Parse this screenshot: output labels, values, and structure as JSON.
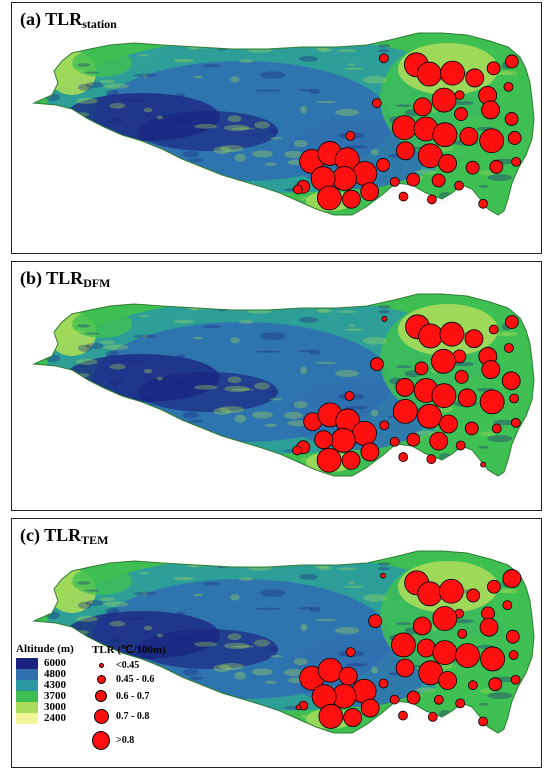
{
  "panels": [
    {
      "id": "a",
      "prefix": "(a) TLR",
      "sub": "station"
    },
    {
      "id": "b",
      "prefix": "(b) TLR",
      "sub": "DFM"
    },
    {
      "id": "c",
      "prefix": "(c) TLR",
      "sub": "TEM"
    }
  ],
  "altitude_legend": {
    "title": "Altitude (m)",
    "classes": [
      {
        "label": "6000",
        "color": "#1a237e"
      },
      {
        "label": "4800",
        "color": "#2f6fb0"
      },
      {
        "label": "4300",
        "color": "#2b9aa0"
      },
      {
        "label": "3700",
        "color": "#3fbf52"
      },
      {
        "label": "3000",
        "color": "#a8dc5a"
      },
      {
        "label": "2400",
        "color": "#f2f59a"
      }
    ]
  },
  "tlr_legend": {
    "title": "TLR (℃/100m)",
    "classes": [
      {
        "label": "<0.45"
      },
      {
        "label": "0.45 - 0.6"
      },
      {
        "label": "0.6 - 0.7"
      },
      {
        "label": "0.7 - 0.8"
      },
      {
        "label": ">0.8"
      }
    ]
  },
  "colors": {
    "station_fill": "#ff1010",
    "station_stroke": "#000000"
  }
}
